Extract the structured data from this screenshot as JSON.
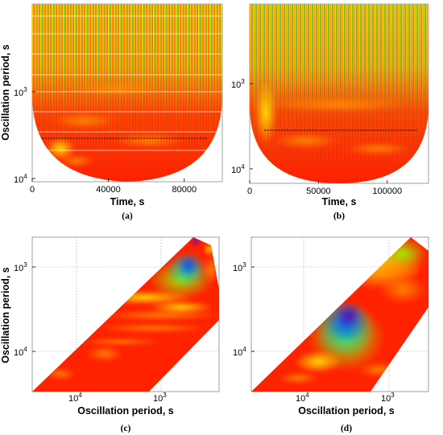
{
  "chart_data": [
    {
      "id": "a",
      "type": "heatmap",
      "panel_label": "(a)",
      "xlabel": "Time, s",
      "ylabel": "Oscillation period, s",
      "xlim": [
        0,
        100000
      ],
      "x_ticks": [
        "0",
        "40000",
        "80000"
      ],
      "x_tick_values": [
        0,
        40000,
        80000
      ],
      "y_ticks": [
        {
          "base": "10",
          "exp": "3"
        },
        {
          "base": "10",
          "exp": "4"
        }
      ],
      "y_scale": "log (inverted)",
      "colormap": [
        "#ff1a00",
        "#ff6a00",
        "#ffd000",
        "#c8f000",
        "#40ee60",
        "#00c8c8",
        "#2030e0",
        "#5010a0"
      ],
      "dashed_line": true
    },
    {
      "id": "b",
      "type": "heatmap",
      "panel_label": "(b)",
      "xlabel": "Time, s",
      "ylabel": "",
      "xlim": [
        0,
        130000
      ],
      "x_ticks": [
        "0",
        "50000",
        "100000"
      ],
      "x_tick_values": [
        0,
        50000,
        100000
      ],
      "y_ticks": [
        {
          "base": "10",
          "exp": "3"
        },
        {
          "base": "10",
          "exp": "4"
        }
      ],
      "y_scale": "log (inverted)",
      "dashed_line": true
    },
    {
      "id": "c",
      "type": "heatmap",
      "panel_label": "(c)",
      "xlabel": "Oscillation period, s",
      "ylabel": "Oscillation period, s",
      "x_ticks": [
        {
          "base": "10",
          "exp": "4"
        },
        {
          "base": "10",
          "exp": "3"
        }
      ],
      "y_ticks": [
        {
          "base": "10",
          "exp": "3"
        },
        {
          "base": "10",
          "exp": "4"
        }
      ],
      "grid": true
    },
    {
      "id": "d",
      "type": "heatmap",
      "panel_label": "(d)",
      "xlabel": "Oscillation period, s",
      "ylabel": "",
      "x_ticks": [
        {
          "base": "10",
          "exp": "4"
        },
        {
          "base": "10",
          "exp": "3"
        }
      ],
      "y_ticks": [
        {
          "base": "10",
          "exp": "3"
        },
        {
          "base": "10",
          "exp": "4"
        }
      ],
      "grid": true
    }
  ]
}
